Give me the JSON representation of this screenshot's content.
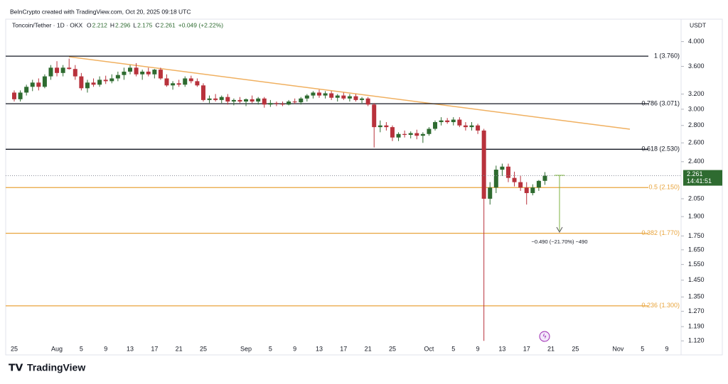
{
  "chart_data": {
    "type": "candlestick",
    "subtitle": "BeInCrypto created with TradingView.com, Oct 20, 2025 09:18 UTC",
    "title": "Toncoin/Tether · 1D · OKX",
    "ohlc_labels": [
      "O",
      "H",
      "L",
      "C"
    ],
    "change": "+0.049 (+2.22%)",
    "currency": "USDT",
    "countdown": "14:41:51",
    "measure_label": "−0.490 (−21.70%) −490",
    "brand": "TradingView",
    "up_color": "#2e6b30",
    "down_color": "#b8323c",
    "log_scale": true,
    "grid": false,
    "ylim": [
      1.104,
      4.13
    ],
    "yticks": [
      {
        "value": 4,
        "label": "4.000"
      },
      {
        "value": 3.6,
        "label": "3.600"
      },
      {
        "value": 3.2,
        "label": "3.200"
      },
      {
        "value": 3,
        "label": "3.000"
      },
      {
        "value": 2.8,
        "label": "2.800"
      },
      {
        "value": 2.6,
        "label": "2.600"
      },
      {
        "value": 2.4,
        "label": "2.400"
      },
      {
        "value": 2.05,
        "label": "2.050"
      },
      {
        "value": 1.9,
        "label": "1.900"
      },
      {
        "value": 1.75,
        "label": "1.750"
      },
      {
        "value": 1.65,
        "label": "1.650"
      },
      {
        "value": 1.55,
        "label": "1.550"
      },
      {
        "value": 1.45,
        "label": "1.450"
      },
      {
        "value": 1.35,
        "label": "1.350"
      },
      {
        "value": 1.27,
        "label": "1.270"
      },
      {
        "value": 1.19,
        "label": "1.190"
      },
      {
        "value": 1.12,
        "label": "1.120"
      }
    ],
    "fib_levels": [
      {
        "value": 3.76,
        "label": "1 (3.760)",
        "color": "#131722"
      },
      {
        "value": 3.071,
        "label": "0.786 (3.071)",
        "color": "#131722"
      },
      {
        "value": 2.53,
        "label": "0.618 (2.530)",
        "color": "#131722"
      },
      {
        "value": 2.15,
        "label": "0.5 (2.150)",
        "color": "#e8a43c"
      },
      {
        "value": 1.77,
        "label": "0.382 (1.770)",
        "color": "#e8a43c"
      },
      {
        "value": 1.3,
        "label": "0.236 (1.300)",
        "color": "#e8a43c"
      }
    ],
    "categories": [
      "25",
      null,
      null,
      null,
      null,
      null,
      null,
      "Aug",
      null,
      null,
      null,
      "5",
      null,
      null,
      null,
      "9",
      null,
      null,
      null,
      "13",
      null,
      null,
      null,
      "17",
      null,
      null,
      null,
      "21",
      null,
      null,
      null,
      "25",
      null,
      null,
      null,
      null,
      null,
      null,
      "Sep",
      null,
      null,
      null,
      "5",
      null,
      null,
      null,
      "9",
      null,
      null,
      null,
      "13",
      null,
      null,
      null,
      "17",
      null,
      null,
      null,
      "21",
      null,
      null,
      null,
      "25",
      null,
      null,
      null,
      null,
      null,
      "Oct",
      null,
      null,
      null,
      "5",
      null,
      null,
      null,
      "9",
      null,
      null,
      null,
      "13",
      null,
      null,
      null,
      "17",
      null,
      null,
      null,
      "21",
      null,
      null,
      null,
      "25",
      null,
      null,
      null,
      null,
      null,
      null,
      "Nov",
      null,
      null,
      null,
      "5",
      null,
      null,
      null,
      "9",
      null,
      null
    ],
    "candles": [
      [
        3.22,
        3.25,
        3.1,
        3.13
      ],
      [
        3.13,
        3.25,
        3.1,
        3.22
      ],
      [
        3.22,
        3.33,
        3.18,
        3.3
      ],
      [
        3.3,
        3.4,
        3.24,
        3.36
      ],
      [
        3.36,
        3.42,
        3.25,
        3.3
      ],
      [
        3.3,
        3.48,
        3.28,
        3.45
      ],
      [
        3.45,
        3.62,
        3.4,
        3.58
      ],
      [
        3.58,
        3.68,
        3.45,
        3.5
      ],
      [
        3.5,
        3.62,
        3.45,
        3.58
      ],
      [
        3.58,
        3.72,
        3.55,
        3.56
      ],
      [
        3.56,
        3.62,
        3.4,
        3.45
      ],
      [
        3.45,
        3.5,
        3.25,
        3.28
      ],
      [
        3.28,
        3.4,
        3.22,
        3.36
      ],
      [
        3.36,
        3.42,
        3.3,
        3.33
      ],
      [
        3.33,
        3.45,
        3.3,
        3.4
      ],
      [
        3.4,
        3.46,
        3.34,
        3.38
      ],
      [
        3.38,
        3.48,
        3.35,
        3.42
      ],
      [
        3.42,
        3.52,
        3.38,
        3.47
      ],
      [
        3.47,
        3.58,
        3.4,
        3.52
      ],
      [
        3.52,
        3.62,
        3.48,
        3.58
      ],
      [
        3.58,
        3.65,
        3.45,
        3.48
      ],
      [
        3.48,
        3.55,
        3.4,
        3.52
      ],
      [
        3.52,
        3.58,
        3.45,
        3.48
      ],
      [
        3.48,
        3.56,
        3.42,
        3.55
      ],
      [
        3.55,
        3.58,
        3.4,
        3.42
      ],
      [
        3.42,
        3.48,
        3.3,
        3.32
      ],
      [
        3.32,
        3.38,
        3.26,
        3.35
      ],
      [
        3.35,
        3.4,
        3.3,
        3.33
      ],
      [
        3.33,
        3.45,
        3.3,
        3.42
      ],
      [
        3.42,
        3.46,
        3.35,
        3.38
      ],
      [
        3.38,
        3.42,
        3.3,
        3.32
      ],
      [
        3.32,
        3.35,
        3.1,
        3.12
      ],
      [
        3.12,
        3.18,
        3.08,
        3.14
      ],
      [
        3.14,
        3.2,
        3.1,
        3.12
      ],
      [
        3.12,
        3.18,
        3.08,
        3.16
      ],
      [
        3.16,
        3.2,
        3.06,
        3.1
      ],
      [
        3.1,
        3.14,
        3.05,
        3.12
      ],
      [
        3.12,
        3.16,
        3.08,
        3.1
      ],
      [
        3.1,
        3.14,
        3.04,
        3.13
      ],
      [
        3.13,
        3.18,
        3.08,
        3.1
      ],
      [
        3.1,
        3.16,
        3.06,
        3.14
      ],
      [
        3.14,
        3.16,
        3.02,
        3.06
      ],
      [
        3.06,
        3.12,
        3.03,
        3.08
      ],
      [
        3.08,
        3.1,
        3.04,
        3.07
      ],
      [
        3.07,
        3.1,
        3.04,
        3.06
      ],
      [
        3.06,
        3.12,
        3.05,
        3.1
      ],
      [
        3.1,
        3.14,
        3.07,
        3.09
      ],
      [
        3.09,
        3.16,
        3.06,
        3.14
      ],
      [
        3.14,
        3.2,
        3.1,
        3.18
      ],
      [
        3.18,
        3.24,
        3.14,
        3.22
      ],
      [
        3.22,
        3.26,
        3.15,
        3.18
      ],
      [
        3.18,
        3.24,
        3.14,
        3.21
      ],
      [
        3.21,
        3.24,
        3.12,
        3.15
      ],
      [
        3.15,
        3.2,
        3.1,
        3.18
      ],
      [
        3.18,
        3.22,
        3.12,
        3.14
      ],
      [
        3.14,
        3.2,
        3.1,
        3.17
      ],
      [
        3.17,
        3.2,
        3.1,
        3.12
      ],
      [
        3.12,
        3.16,
        3.08,
        3.14
      ],
      [
        3.14,
        3.16,
        3.04,
        3.06
      ],
      [
        3.06,
        3.08,
        2.55,
        2.78
      ],
      [
        2.78,
        2.86,
        2.72,
        2.8
      ],
      [
        2.8,
        2.84,
        2.74,
        2.78
      ],
      [
        2.78,
        2.8,
        2.62,
        2.66
      ],
      [
        2.66,
        2.72,
        2.62,
        2.7
      ],
      [
        2.7,
        2.74,
        2.66,
        2.69
      ],
      [
        2.69,
        2.73,
        2.65,
        2.71
      ],
      [
        2.71,
        2.75,
        2.64,
        2.68
      ],
      [
        2.68,
        2.72,
        2.6,
        2.7
      ],
      [
        2.7,
        2.78,
        2.68,
        2.76
      ],
      [
        2.76,
        2.86,
        2.74,
        2.84
      ],
      [
        2.84,
        2.9,
        2.8,
        2.86
      ],
      [
        2.86,
        2.89,
        2.82,
        2.84
      ],
      [
        2.84,
        2.9,
        2.8,
        2.87
      ],
      [
        2.87,
        2.9,
        2.78,
        2.8
      ],
      [
        2.8,
        2.84,
        2.74,
        2.78
      ],
      [
        2.78,
        2.84,
        2.74,
        2.8
      ],
      [
        2.8,
        2.82,
        2.7,
        2.74
      ],
      [
        2.74,
        2.76,
        1.12,
        2.05
      ],
      [
        2.05,
        2.2,
        2.0,
        2.15
      ],
      [
        2.15,
        2.36,
        2.1,
        2.32
      ],
      [
        2.32,
        2.38,
        2.26,
        2.35
      ],
      [
        2.35,
        2.38,
        2.2,
        2.24
      ],
      [
        2.24,
        2.3,
        2.16,
        2.2
      ],
      [
        2.2,
        2.26,
        2.12,
        2.15
      ],
      [
        2.15,
        2.2,
        2.0,
        2.1
      ],
      [
        2.1,
        2.18,
        2.08,
        2.15
      ],
      [
        2.15,
        2.22,
        2.12,
        2.212
      ],
      [
        2.212,
        2.296,
        2.175,
        2.261
      ],
      null,
      null,
      null,
      null,
      null,
      null,
      null,
      null,
      null,
      null,
      null,
      null,
      null,
      null,
      null,
      null,
      null,
      null,
      null,
      null,
      null,
      null
    ]
  }
}
